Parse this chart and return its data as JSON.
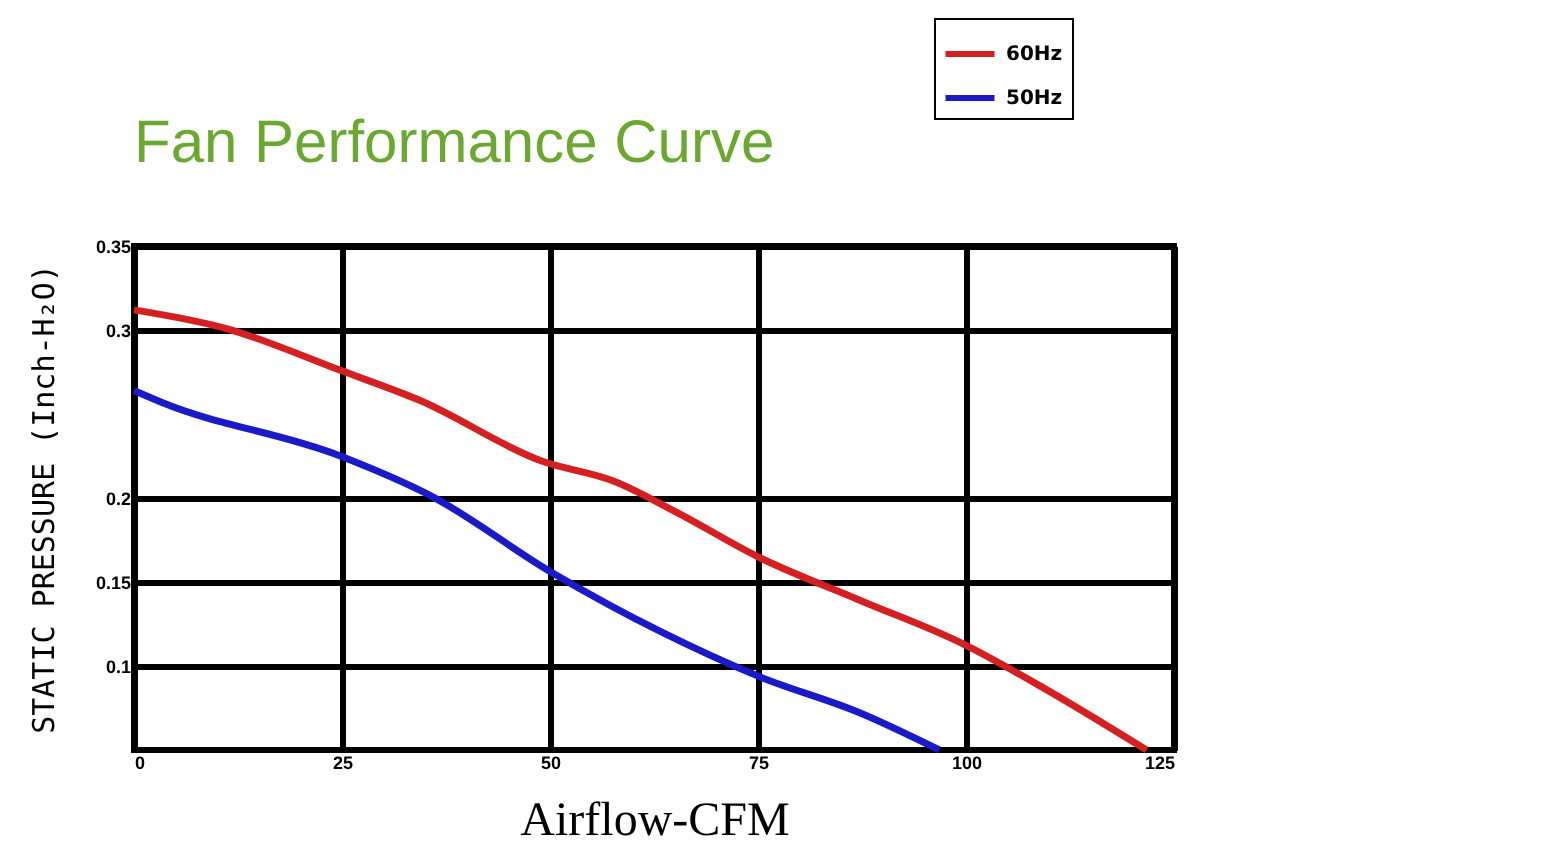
{
  "chart_data": {
    "type": "line",
    "title": "Fan Performance Curve",
    "xlabel": "Airflow-CFM",
    "ylabel": "STATIC PRESSURE (Inch-H₂O)",
    "xlim": [
      0,
      125
    ],
    "xticks": [
      0,
      25,
      50,
      75,
      100,
      125
    ],
    "ylim": [
      0.05,
      0.35
    ],
    "yticks": [
      0.1,
      0.15,
      0.2,
      0.3,
      0.35
    ],
    "grid": true,
    "legend": "top right",
    "marker": "none",
    "line_style": "solid",
    "series": [
      {
        "name": "60Hz",
        "color": "#d42020",
        "x": [
          0,
          11,
          24.8,
          34.4,
          49,
          57.7,
          65.4,
          75,
          87.3,
          99.7,
          109.3,
          121.7
        ],
        "values": [
          0.312,
          0.301,
          0.276,
          0.258,
          0.222,
          0.21,
          0.191,
          0.165,
          0.139,
          0.113,
          0.087,
          0.05
        ]
      },
      {
        "name": "50Hz",
        "color": "#1a1ac8",
        "x": [
          0,
          3.3,
          24.8,
          35.8,
          50.1,
          63.5,
          75,
          87.3,
          96.8
        ],
        "values": [
          0.264,
          0.257,
          0.225,
          0.201,
          0.156,
          0.12,
          0.094,
          0.072,
          0.05
        ]
      }
    ]
  }
}
